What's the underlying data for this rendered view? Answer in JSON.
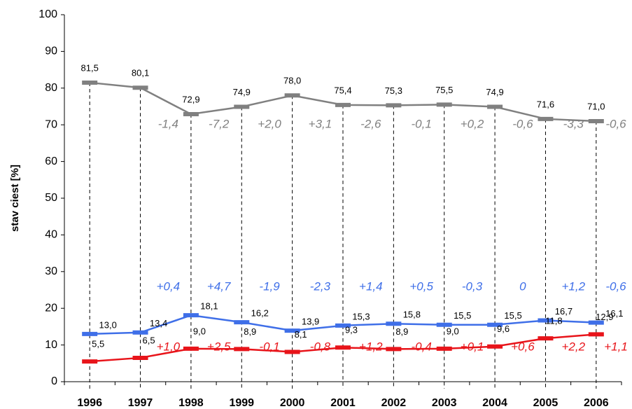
{
  "chart_data": {
    "type": "line",
    "y_label": "stav ciest [%]",
    "categories": [
      "1996",
      "1997",
      "1998",
      "1999",
      "2000",
      "2001",
      "2002",
      "2003",
      "2004",
      "2005",
      "2006"
    ],
    "ylim": [
      0,
      100
    ],
    "yticks": [
      0,
      10,
      20,
      30,
      40,
      50,
      60,
      70,
      80,
      90,
      100
    ],
    "series": [
      {
        "color": "#808080",
        "values": [
          81.5,
          80.1,
          72.9,
          74.9,
          78.0,
          75.4,
          75.3,
          75.5,
          74.9,
          71.6,
          71.0
        ],
        "value_labels": [
          "81,5",
          "80,1",
          "72,9",
          "74,9",
          "78,0",
          "75,4",
          "75,3",
          "75,5",
          "74,9",
          "71,6",
          "71,0"
        ],
        "annotations": [
          "-1,4",
          "-7,2",
          "+2,0",
          "+3,1",
          "-2,6",
          "-0,1",
          "+0,2",
          "-0,6",
          "-3,3",
          "-0,6"
        ]
      },
      {
        "color": "#3f6fe8",
        "values": [
          13.0,
          13.4,
          18.1,
          16.2,
          13.9,
          15.3,
          15.8,
          15.5,
          15.5,
          16.7,
          16.1
        ],
        "value_labels": [
          "13,0",
          "13,4",
          "18,1",
          "16,2",
          "13,9",
          "15,3",
          "15,8",
          "15,5",
          "15,5",
          "16,7",
          "16,1"
        ],
        "annotations": [
          "+0,4",
          "+4,7",
          "-1,9",
          "-2,3",
          "+1,4",
          "+0,5",
          "-0,3",
          "0",
          "+1,2",
          "-0,6"
        ]
      },
      {
        "color": "#e8141a",
        "values": [
          5.5,
          6.5,
          9.0,
          8.9,
          8.1,
          9.3,
          8.9,
          9.0,
          9.6,
          11.8,
          12.9
        ],
        "value_labels": [
          "5,5",
          "6,5",
          "9,0",
          "8,9",
          "8,1",
          "9,3",
          "8,9",
          "9,0",
          "9,6",
          "11,8",
          "12,9"
        ],
        "annotations": [
          "+1,0",
          "+2,5",
          "-0,1",
          "-0,8",
          "+1,2",
          "-0,4",
          "+0,1",
          "+0,6",
          "+2,2",
          "+1,1"
        ]
      }
    ]
  }
}
